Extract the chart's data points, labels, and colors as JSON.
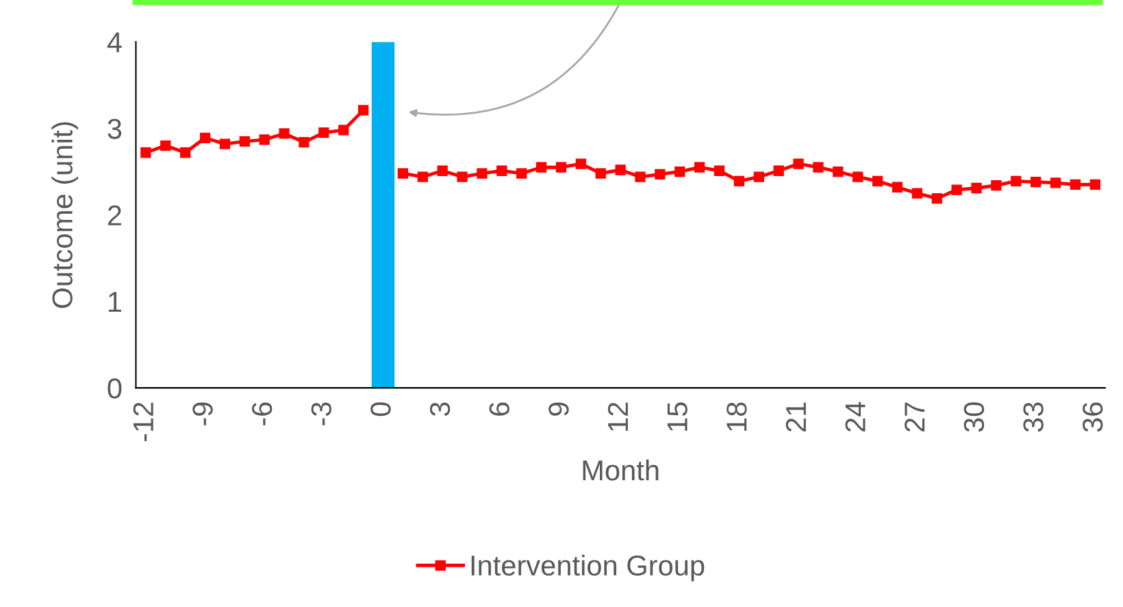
{
  "chart_data": {
    "type": "line",
    "xlabel": "Month",
    "ylabel": "Outcome (unit)",
    "x": [
      -12,
      -11,
      -10,
      -9,
      -8,
      -7,
      -6,
      -5,
      -4,
      -3,
      -2,
      -1,
      0,
      1,
      2,
      3,
      4,
      5,
      6,
      7,
      8,
      9,
      10,
      11,
      12,
      13,
      14,
      15,
      16,
      17,
      18,
      19,
      20,
      21,
      22,
      23,
      24,
      25,
      26,
      27,
      28,
      29,
      30,
      31,
      32,
      33,
      34,
      35,
      36
    ],
    "series": [
      {
        "name": "Intervention Group",
        "color": "#ff0000",
        "values": [
          2.72,
          2.8,
          2.72,
          2.89,
          2.82,
          2.85,
          2.87,
          2.94,
          2.84,
          2.95,
          2.98,
          3.21,
          null,
          2.48,
          2.44,
          2.51,
          2.44,
          2.48,
          2.51,
          2.48,
          2.55,
          2.55,
          2.59,
          2.48,
          2.52,
          2.44,
          2.47,
          2.5,
          2.55,
          2.51,
          2.39,
          2.44,
          2.51,
          2.59,
          2.55,
          2.5,
          2.44,
          2.39,
          2.32,
          2.25,
          2.19,
          2.29,
          2.31,
          2.34,
          2.39,
          2.38,
          2.37,
          2.35,
          2.35
        ]
      }
    ],
    "xlim": [
      -12.5,
      36.5
    ],
    "xticks": [
      -12,
      -9,
      -6,
      -3,
      0,
      3,
      6,
      9,
      12,
      15,
      18,
      21,
      24,
      27,
      30,
      33,
      36
    ],
    "ylim": [
      0,
      4
    ],
    "yticks": [
      0,
      1,
      2,
      3,
      4
    ],
    "ref_lines": [
      {
        "axis": "x",
        "value": 0,
        "color": "#00b0f0"
      }
    ],
    "marker": "square",
    "line_style": "solid",
    "grid": false,
    "legend": "bottom"
  }
}
